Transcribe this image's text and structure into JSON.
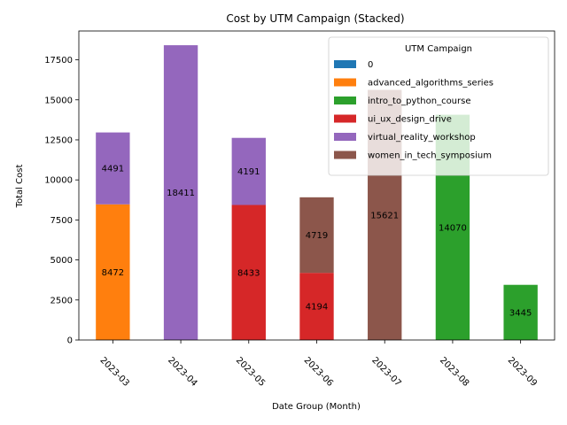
{
  "chart_data": {
    "type": "bar",
    "stacked": true,
    "title": "Cost by UTM Campaign (Stacked)",
    "xlabel": "Date Group (Month)",
    "ylabel": "Total Cost",
    "ylim": [
      0,
      19300
    ],
    "yticks": [
      0,
      2500,
      5000,
      7500,
      10000,
      12500,
      15000,
      17500
    ],
    "categories": [
      "2023-03",
      "2023-04",
      "2023-05",
      "2023-06",
      "2023-07",
      "2023-08",
      "2023-09"
    ],
    "legend": {
      "title": "UTM Campaign",
      "placement": "top-right"
    },
    "series": [
      {
        "name": "0",
        "color": "#1f77b4",
        "values": [
          0,
          0,
          0,
          0,
          0,
          0,
          0
        ]
      },
      {
        "name": "advanced_algorithms_series",
        "color": "#ff7f0e",
        "values": [
          8472,
          0,
          0,
          0,
          0,
          0,
          0
        ]
      },
      {
        "name": "intro_to_python_course",
        "color": "#2ca02c",
        "values": [
          0,
          0,
          0,
          0,
          0,
          14070,
          3445
        ]
      },
      {
        "name": "ui_ux_design_drive",
        "color": "#d62728",
        "values": [
          0,
          0,
          8433,
          4194,
          0,
          0,
          0
        ]
      },
      {
        "name": "virtual_reality_workshop",
        "color": "#9467bd",
        "values": [
          4491,
          18411,
          4191,
          0,
          0,
          0,
          0
        ]
      },
      {
        "name": "women_in_tech_symposium",
        "color": "#8c564b",
        "values": [
          0,
          0,
          0,
          4719,
          15621,
          0,
          0
        ]
      }
    ]
  }
}
